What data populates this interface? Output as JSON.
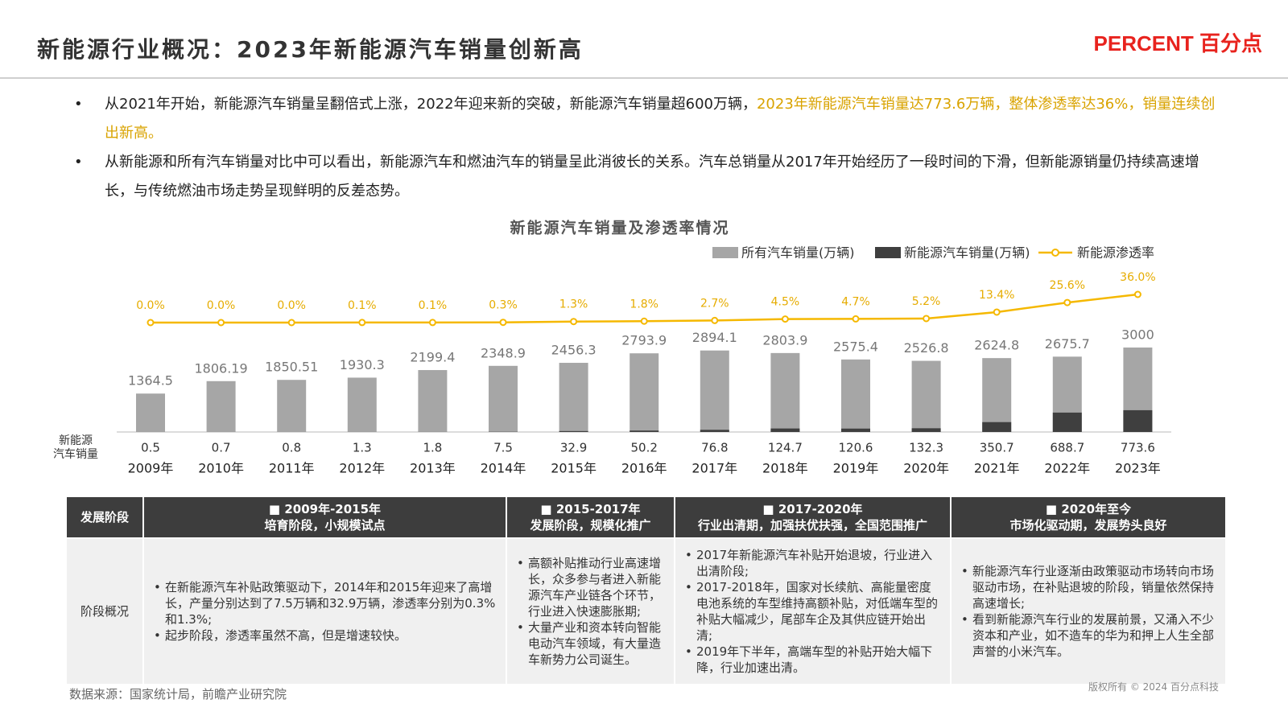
{
  "header": {
    "title": "新能源行业概况：2023年新能源汽车销量创新高",
    "logo": "PERCENT 百分点"
  },
  "bullets": [
    {
      "text": "从2021年开始，新能源汽车销量呈翻倍式上涨，2022年迎来新的突破，新能源汽车销量超600万辆，",
      "highlight": "2023年新能源汽车销量达773.6万辆，整体渗透率达36%，销量连续创出新高。"
    },
    {
      "text": "从新能源和所有汽车销量对比中可以看出，新能源汽车和燃油汽车的销量呈此消彼长的关系。汽车总销量从2017年开始经历了一段时间的下滑，但新能源销量仍持续高速增长，与传统燃油市场走势呈现鲜明的反差态势。"
    }
  ],
  "chart_data": {
    "type": "bar",
    "title": "新能源汽车销量及渗透率情况",
    "categories": [
      "2009年",
      "2010年",
      "2011年",
      "2012年",
      "2013年",
      "2014年",
      "2015年",
      "2016年",
      "2017年",
      "2018年",
      "2019年",
      "2020年",
      "2021年",
      "2022年",
      "2023年"
    ],
    "row_label": [
      "新能源",
      "汽车销量"
    ],
    "series": [
      {
        "name": "所有汽车销量(万辆)",
        "color": "#a6a6a6",
        "values": [
          1364.5,
          1806.19,
          1850.51,
          1930.3,
          2199.4,
          2348.9,
          2456.3,
          2793.9,
          2894.1,
          2803.9,
          2575.4,
          2526.8,
          2624.8,
          2675.7,
          3000
        ]
      },
      {
        "name": "新能源汽车销量(万辆)",
        "color": "#3f3f3f",
        "values": [
          0.5,
          0.7,
          0.8,
          1.3,
          1.8,
          7.5,
          32.9,
          50.2,
          76.8,
          124.7,
          120.6,
          132.3,
          350.7,
          688.7,
          773.6
        ]
      },
      {
        "name": "新能源渗透率",
        "color": "#f5b800",
        "type": "line",
        "axis": "y2",
        "values": [
          0.0,
          0.0,
          0.0,
          0.1,
          0.1,
          0.3,
          1.3,
          1.8,
          2.7,
          4.5,
          4.7,
          5.2,
          13.4,
          25.6,
          36.0
        ],
        "value_labels": [
          "0.0%",
          "0.0%",
          "0.0%",
          "0.1%",
          "0.1%",
          "0.3%",
          "1.3%",
          "1.8%",
          "2.7%",
          "4.5%",
          "4.7%",
          "5.2%",
          "13.4%",
          "25.6%",
          "36.0%"
        ]
      }
    ]
  },
  "table": {
    "header": [
      {
        "title": "发展阶段"
      },
      {
        "title": "2009年-2015年",
        "subtitle": "培育阶段，小规模试点"
      },
      {
        "title": "2015-2017年",
        "subtitle": "发展阶段，规模化推广"
      },
      {
        "title": "2017-2020年",
        "subtitle": "行业出清期，加强扶优扶强，全国范围推广"
      },
      {
        "title": "2020年至今",
        "subtitle": "市场化驱动期，发展势头良好"
      }
    ],
    "row_label": "阶段概况",
    "cells": [
      [
        "在新能源汽车补贴政策驱动下，2014年和2015年迎来了高增长，产量分别达到了7.5万辆和32.9万辆，渗透率分别为0.3%和1.3%;",
        "起步阶段，渗透率虽然不高，但是增速较快。"
      ],
      [
        "高额补贴推动行业高速增长，众多参与者进入新能源汽车产业链各个环节，行业进入快速膨胀期;",
        "大量产业和资本转向智能电动汽车领域，有大量造车新势力公司诞生。"
      ],
      [
        "2017年新能源汽车补贴开始退坡，行业进入出清阶段;",
        "2017-2018年，国家对长续航、高能量密度电池系统的车型维持高额补贴，对低端车型的补贴大幅减少，尾部车企及其供应链开始出清;",
        "2019年下半年，高端车型的补贴开始大幅下降，行业加速出清。"
      ],
      [
        "新能源汽车行业逐渐由政策驱动市场转向市场驱动市场，在补贴退坡的阶段，销量依然保持高速增长;",
        "看到新能源汽车行业的发展前景，又涌入不少资本和产业，如不造车的华为和押上人生全部声誉的小米汽车。"
      ]
    ]
  },
  "footer": {
    "source": "数据来源：国家统计局，前瞻产业研究院",
    "copyright": "版权所有 © 2024 百分点科技"
  }
}
